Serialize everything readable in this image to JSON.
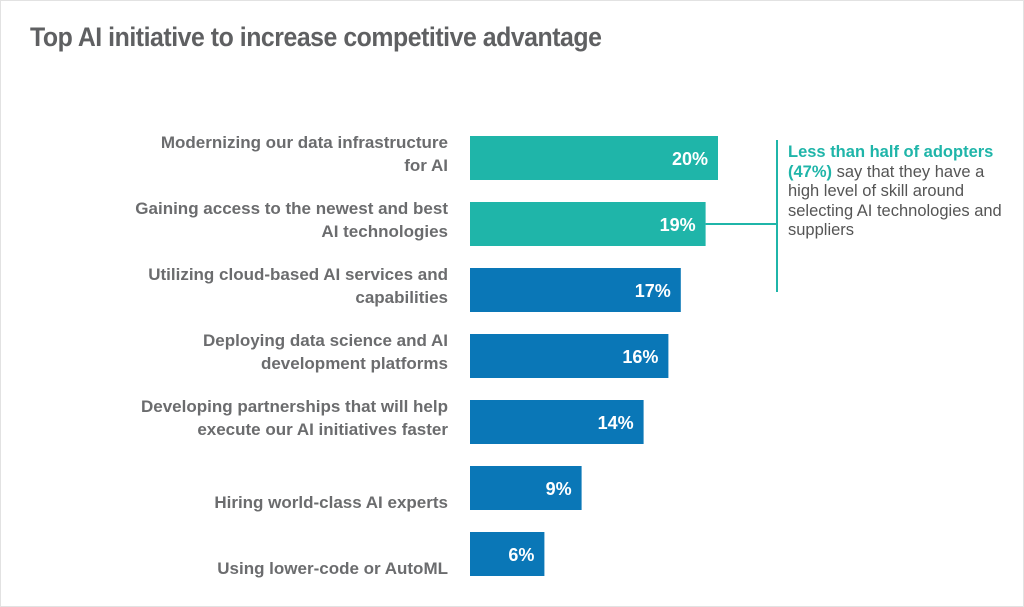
{
  "chart_data": {
    "type": "bar",
    "orientation": "horizontal",
    "title": "Top AI initiative to increase competitive advantage",
    "xlabel": "",
    "ylabel": "",
    "grid": false,
    "categories": [
      [
        "Modernizing our data infrastructure",
        "for AI"
      ],
      [
        "Gaining access to the newest and best",
        "AI technologies"
      ],
      [
        "Utilizing cloud-based AI services and",
        "capabilities"
      ],
      [
        "Deploying data science and AI",
        "development platforms"
      ],
      [
        "Developing partnerships that will help",
        "execute our AI initiatives faster"
      ],
      [
        "Hiring world-class AI experts"
      ],
      [
        "Using lower-code or AutoML"
      ]
    ],
    "values": [
      20,
      19,
      17,
      16,
      14,
      9,
      6
    ],
    "value_labels": [
      "20%",
      "19%",
      "17%",
      "16%",
      "14%",
      "9%",
      "6%"
    ],
    "highlighted": [
      true,
      true,
      false,
      false,
      false,
      false,
      false
    ],
    "colors": {
      "highlight": "#1fb5a9",
      "default": "#0a77b7"
    },
    "annotation": {
      "bold": "Less than half of adopters (47%)",
      "rest": " say that they have a high level of skill around selecting AI technologies and suppliers",
      "applies_to": [
        0,
        1
      ]
    }
  }
}
